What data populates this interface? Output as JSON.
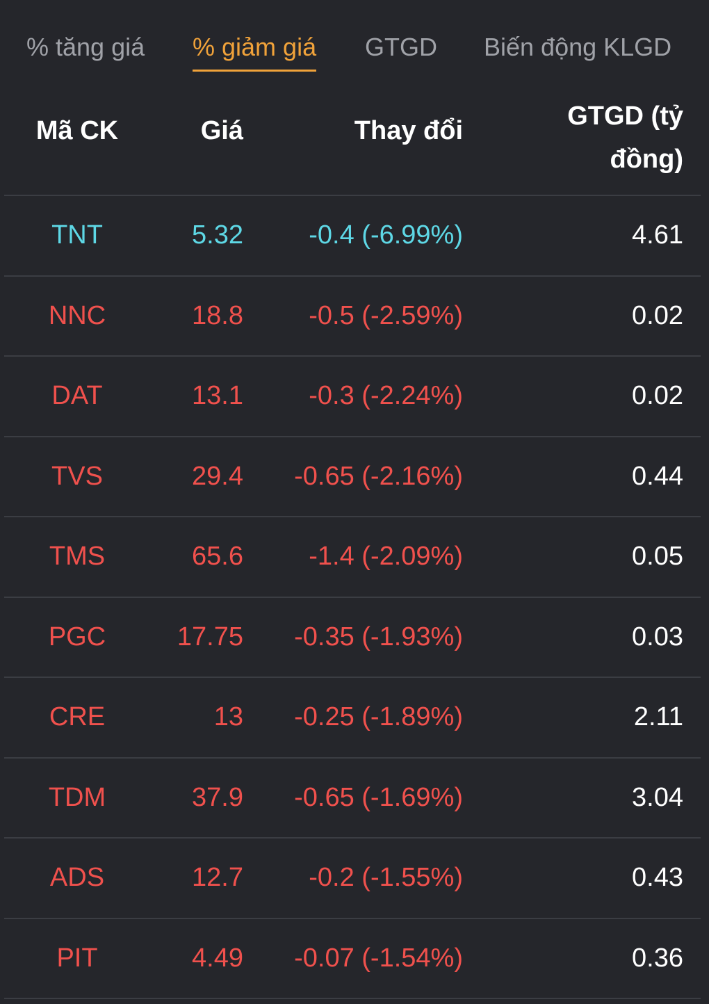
{
  "tabs": [
    {
      "label": "% tăng giá",
      "active": false
    },
    {
      "label": "% giảm giá",
      "active": true
    },
    {
      "label": "GTGD",
      "active": false
    },
    {
      "label": "Biến động KLGD",
      "active": false
    }
  ],
  "columns": {
    "code": "Mã CK",
    "price": "Giá",
    "change": "Thay đổi",
    "value_line1": "GTGD (tỷ",
    "value_line2": "đồng)"
  },
  "colors": {
    "background": "#25262b",
    "active_tab": "#f0a23a",
    "floor": "#5ed8e6",
    "down": "#f0514d",
    "neutral_text": "#ffffff"
  },
  "rows": [
    {
      "code": "TNT",
      "price": "5.32",
      "change": "-0.4 (-6.99%)",
      "value": "4.61",
      "tone": "floor"
    },
    {
      "code": "NNC",
      "price": "18.8",
      "change": "-0.5 (-2.59%)",
      "value": "0.02",
      "tone": "down"
    },
    {
      "code": "DAT",
      "price": "13.1",
      "change": "-0.3 (-2.24%)",
      "value": "0.02",
      "tone": "down"
    },
    {
      "code": "TVS",
      "price": "29.4",
      "change": "-0.65 (-2.16%)",
      "value": "0.44",
      "tone": "down"
    },
    {
      "code": "TMS",
      "price": "65.6",
      "change": "-1.4 (-2.09%)",
      "value": "0.05",
      "tone": "down"
    },
    {
      "code": "PGC",
      "price": "17.75",
      "change": "-0.35 (-1.93%)",
      "value": "0.03",
      "tone": "down"
    },
    {
      "code": "CRE",
      "price": "13",
      "change": "-0.25 (-1.89%)",
      "value": "2.11",
      "tone": "down"
    },
    {
      "code": "TDM",
      "price": "37.9",
      "change": "-0.65 (-1.69%)",
      "value": "3.04",
      "tone": "down"
    },
    {
      "code": "ADS",
      "price": "12.7",
      "change": "-0.2 (-1.55%)",
      "value": "0.43",
      "tone": "down"
    },
    {
      "code": "PIT",
      "price": "4.49",
      "change": "-0.07 (-1.54%)",
      "value": "0.36",
      "tone": "down"
    }
  ]
}
